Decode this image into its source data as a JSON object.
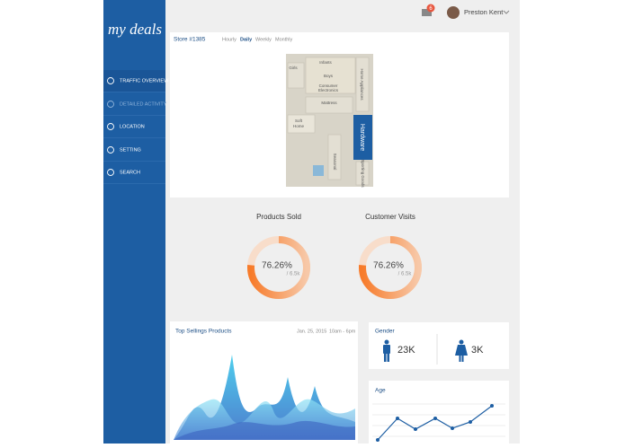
{
  "topbar": {
    "notifications": "6",
    "user": "Preston Kent"
  },
  "sidebar": {
    "logo": "my deals",
    "menu": [
      "TRAFFIC OVERVIEW",
      "DETAILED ACTIVITY",
      "LOCATION",
      "SETTING",
      "SEARCH"
    ]
  },
  "store": {
    "title": "Store #1385",
    "tabs": [
      "Hourly",
      "Daily",
      "Weekly",
      "Monthly"
    ],
    "map_labels": [
      "Girls",
      "Infants",
      "Boys",
      "Consumer",
      "Electronics",
      "Home Appliances",
      "Mattress",
      "Soft",
      "Home",
      "Hardware",
      "Seasonal",
      "Sporting Goods"
    ]
  },
  "stats": [
    {
      "title": "Products Sold",
      "percent": {
        "value": 76.26,
        "label": "76.26%"
      },
      "total": "/ 6.5k"
    },
    {
      "title": "Customer Visits",
      "percent": {
        "value": 76.26,
        "label": "76.26%"
      },
      "total": "/ 6.5k"
    }
  ],
  "top_sellings": {
    "title": "Top Sellings Products",
    "date": "Jan. 25, 2015",
    "time": "10am - 6pm"
  },
  "gender": {
    "title": "Gender",
    "male": "23K",
    "female": "3K"
  },
  "age": {
    "title": "Age"
  }
}
